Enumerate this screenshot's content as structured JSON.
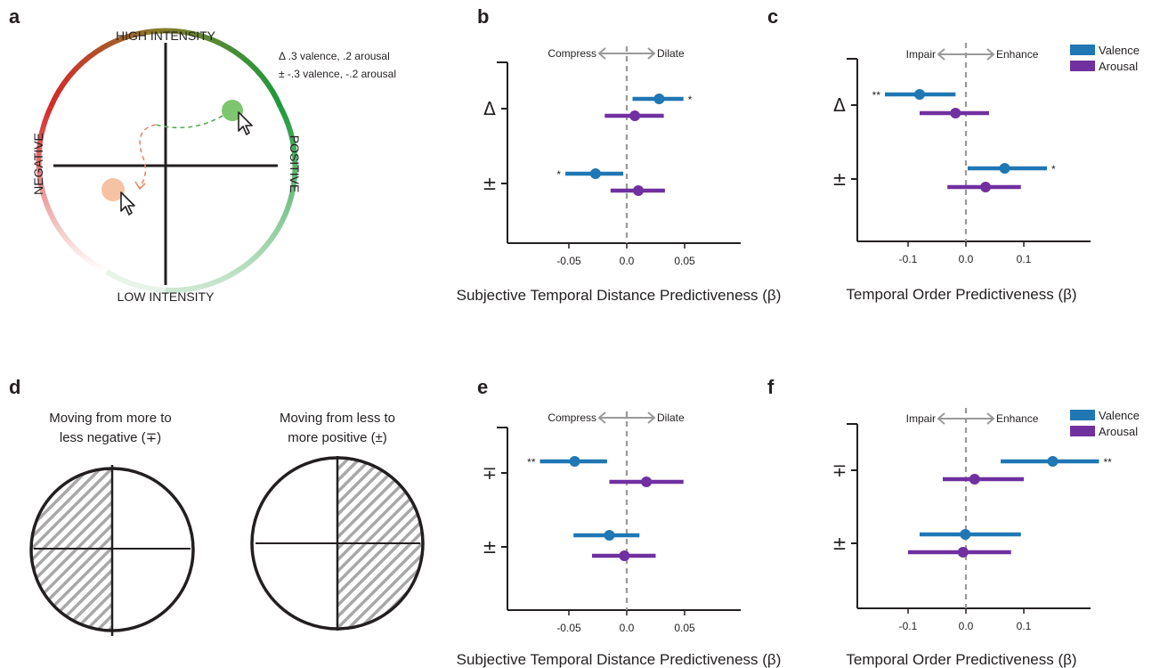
{
  "panel_labels": {
    "a": "a",
    "b": "b",
    "c": "c",
    "d": "d",
    "e": "e",
    "f": "f"
  },
  "wheel": {
    "top": "HIGH INTENSITY",
    "bottom": "LOW INTENSITY",
    "left": "NEGATIVE",
    "right": "POSITIVE",
    "legend_line1": "Δ  .3 valence,  .2 arousal",
    "legend_line2": "± -.3 valence, -.2 arousal"
  },
  "panel_d": {
    "left_line1": "Moving from more to",
    "left_line2": "less negative (∓)",
    "right_line1": "Moving from less to",
    "right_line2": "more positive (±)"
  },
  "legend": {
    "valence": "Valence",
    "arousal": "Arousal"
  },
  "colors": {
    "valence": "#1f77b4",
    "arousal": "#7030a0"
  },
  "chart_data": [
    {
      "type": "forest",
      "panel": "b",
      "xlabel": "Subjective Temporal Distance Predictiveness (β)",
      "xticks": [
        "-0.05",
        "0.0",
        "0.05"
      ],
      "xlim": [
        -0.1,
        0.1
      ],
      "direction_labels": {
        "left": "Compress",
        "right": "Dilate"
      },
      "rows": [
        "Δ",
        "±"
      ],
      "series": [
        {
          "name": "Valence",
          "values": [
            0.028,
            -0.027
          ],
          "ci_low": [
            0.005,
            -0.053
          ],
          "ci_high": [
            0.049,
            -0.003
          ],
          "sig": [
            "*",
            "*"
          ]
        },
        {
          "name": "Arousal",
          "values": [
            0.007,
            0.01
          ],
          "ci_low": [
            -0.019,
            -0.014
          ],
          "ci_high": [
            0.032,
            0.033
          ],
          "sig": [
            "",
            ""
          ]
        }
      ]
    },
    {
      "type": "forest",
      "panel": "c",
      "xlabel": "Temporal Order Predictiveness (β)",
      "xticks": [
        "-0.1",
        "0.0",
        "0.1"
      ],
      "xlim": [
        -0.2,
        0.2
      ],
      "direction_labels": {
        "left": "Impair",
        "right": "Enhance"
      },
      "rows": [
        "Δ",
        "±"
      ],
      "series": [
        {
          "name": "Valence",
          "values": [
            -0.08,
            0.067
          ],
          "ci_low": [
            -0.14,
            0.003
          ],
          "ci_high": [
            -0.018,
            0.14
          ],
          "sig": [
            "**",
            "*"
          ]
        },
        {
          "name": "Arousal",
          "values": [
            -0.018,
            0.034
          ],
          "ci_low": [
            -0.08,
            -0.032
          ],
          "ci_high": [
            0.04,
            0.095
          ],
          "sig": [
            "",
            ""
          ]
        }
      ]
    },
    {
      "type": "forest",
      "panel": "e",
      "xlabel": "Subjective Temporal Distance Predictiveness (β)",
      "xticks": [
        "-0.05",
        "0.0",
        "0.05"
      ],
      "xlim": [
        -0.1,
        0.1
      ],
      "direction_labels": {
        "left": "Compress",
        "right": "Dilate"
      },
      "rows": [
        "∓",
        "±"
      ],
      "series": [
        {
          "name": "Valence",
          "values": [
            -0.045,
            -0.015
          ],
          "ci_low": [
            -0.075,
            -0.046
          ],
          "ci_high": [
            -0.017,
            0.011
          ],
          "sig": [
            "**",
            ""
          ]
        },
        {
          "name": "Arousal",
          "values": [
            0.017,
            -0.002
          ],
          "ci_low": [
            -0.015,
            -0.03
          ],
          "ci_high": [
            0.049,
            0.025
          ],
          "sig": [
            "",
            ""
          ]
        }
      ]
    },
    {
      "type": "forest",
      "panel": "f",
      "xlabel": "Temporal Order Predictiveness (β)",
      "xticks": [
        "-0.1",
        "0.0",
        "0.1"
      ],
      "xlim": [
        -0.2,
        0.2
      ],
      "direction_labels": {
        "left": "Impair",
        "right": "Enhance"
      },
      "rows": [
        "∓",
        "±"
      ],
      "series": [
        {
          "name": "Valence",
          "values": [
            0.15,
            -0.001
          ],
          "ci_low": [
            0.06,
            -0.08
          ],
          "ci_high": [
            0.23,
            0.095
          ],
          "sig": [
            "**",
            ""
          ]
        },
        {
          "name": "Arousal",
          "values": [
            0.015,
            -0.005
          ],
          "ci_low": [
            -0.04,
            -0.1
          ],
          "ci_high": [
            0.1,
            0.078
          ],
          "sig": [
            "",
            ""
          ]
        }
      ]
    }
  ]
}
